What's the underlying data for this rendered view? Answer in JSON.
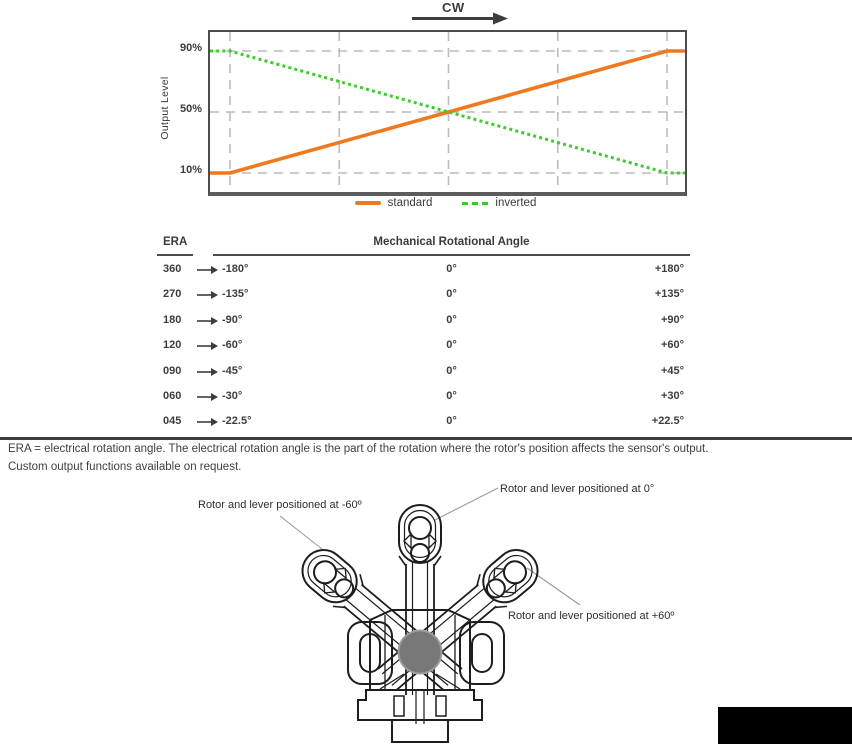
{
  "colors": {
    "orange": "#f0791f",
    "green": "#3ccb2d",
    "axis_gray": "#4d4d4d",
    "grid_gray": "#bcbcbc",
    "leader_gray": "#9a9a9a",
    "drawing_black": "#1d1d1d",
    "rotor_gray": "#787878",
    "redaction_black": "#000000"
  },
  "chart_data": {
    "type": "line",
    "direction_label": "CW",
    "ylabel": "Output Level",
    "y_range": [
      0,
      100
    ],
    "grid": true,
    "legend_position": "bottom-center",
    "yticks": [
      {
        "label": "90%",
        "value": 90
      },
      {
        "label": "50%",
        "value": 50
      },
      {
        "label": "10%",
        "value": 10
      }
    ],
    "series": [
      {
        "name": "standard",
        "color": "#f0791f",
        "style": "solid",
        "points": [
          [
            0,
            10
          ],
          [
            4.2,
            10
          ],
          [
            96.2,
            90
          ],
          [
            100,
            90
          ]
        ]
      },
      {
        "name": "inverted",
        "color": "#3ccb2d",
        "style": "dotted",
        "points": [
          [
            0,
            90
          ],
          [
            4.2,
            90
          ],
          [
            96.2,
            10
          ],
          [
            100,
            10
          ]
        ]
      }
    ]
  },
  "table": {
    "headers": {
      "era": "ERA",
      "angle": "Mechanical Rotational Angle"
    },
    "rows": [
      {
        "era": "360",
        "neg": "-180°",
        "zero": "0°",
        "pos": "+180°"
      },
      {
        "era": "270",
        "neg": "-135°",
        "zero": "0°",
        "pos": "+135°"
      },
      {
        "era": "180",
        "neg": "-90°",
        "zero": "0°",
        "pos": "+90°"
      },
      {
        "era": "120",
        "neg": "-60°",
        "zero": "0°",
        "pos": "+60°"
      },
      {
        "era": "090",
        "neg": "-45°",
        "zero": "0°",
        "pos": "+45°"
      },
      {
        "era": "060",
        "neg": "-30°",
        "zero": "0°",
        "pos": "+30°"
      },
      {
        "era": "045",
        "neg": "-22.5°",
        "zero": "0°",
        "pos": "+22.5°"
      }
    ]
  },
  "notes": {
    "line1": "ERA = electrical rotation angle. The electrical rotation angle is the part of the rotation where the rotor's position affects the sensor's output.",
    "line2": "Custom output functions available on request."
  },
  "diagram": {
    "labels": {
      "zero": "Rotor and lever positioned at 0°",
      "neg60": "Rotor and lever positioned at -60º",
      "pos60": "Rotor and lever positioned at +60º"
    }
  }
}
